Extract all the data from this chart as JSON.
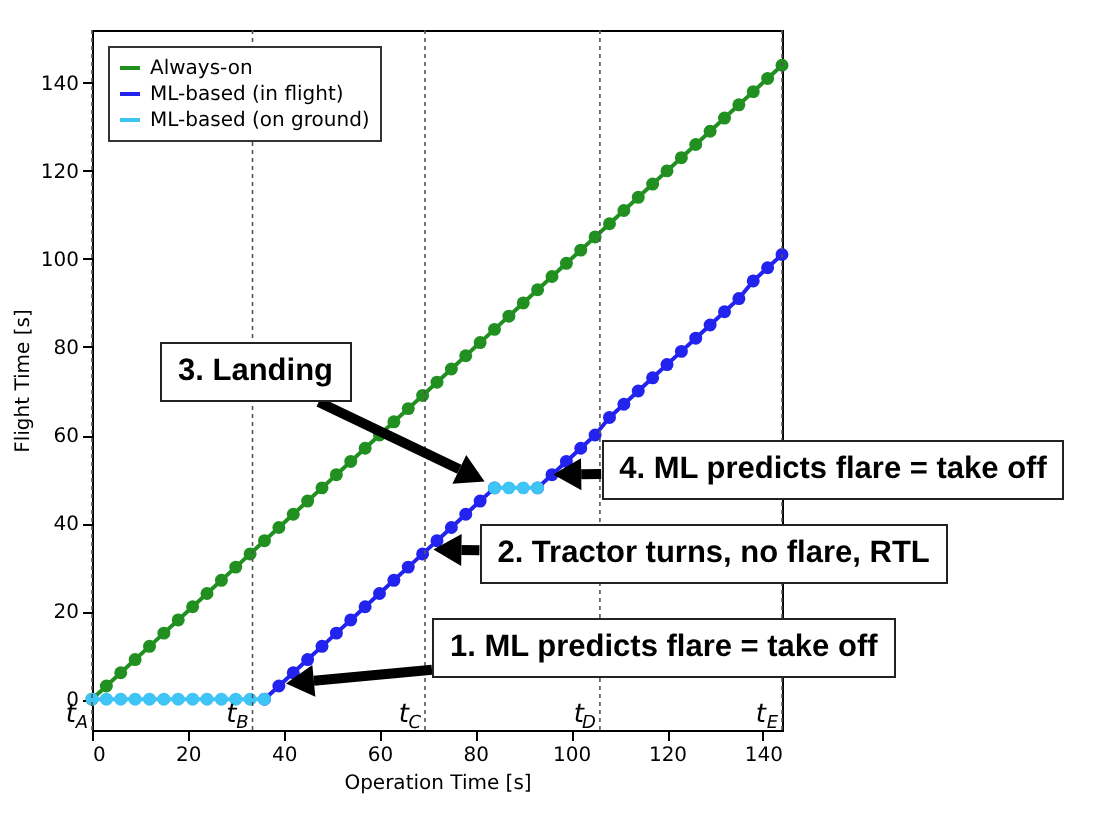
{
  "chart_data": {
    "type": "line",
    "xlabel": "Operation Time [s]",
    "ylabel": "Flight Time [s]",
    "xlim": [
      0,
      144
    ],
    "ylim": [
      -7,
      152
    ],
    "xticks": [
      0,
      20,
      40,
      60,
      80,
      100,
      120,
      140
    ],
    "yticks": [
      0,
      20,
      40,
      60,
      80,
      100,
      120,
      140
    ],
    "grid": false,
    "legend": "top left",
    "marker": "circle",
    "line_style": "solid",
    "series": [
      {
        "name": "Always-on",
        "color": "#219021",
        "x": [
          0,
          3,
          6,
          9,
          12,
          15,
          18,
          21,
          24,
          27,
          30,
          33,
          36,
          39,
          42,
          45,
          48,
          51,
          54,
          57,
          60,
          63,
          66,
          69,
          72,
          75,
          78,
          81,
          84,
          87,
          90,
          93,
          96,
          99,
          102,
          105,
          108,
          111,
          114,
          117,
          120,
          123,
          126,
          129,
          132,
          135,
          138,
          141,
          144
        ],
        "values": [
          0,
          3,
          6,
          9,
          12,
          15,
          18,
          21,
          24,
          27,
          30,
          33,
          36,
          39,
          42,
          45,
          48,
          51,
          54,
          57,
          60,
          63,
          66,
          69,
          72,
          75,
          78,
          81,
          84,
          87,
          90,
          93,
          96,
          99,
          102,
          105,
          108,
          111,
          114,
          117,
          120,
          123,
          126,
          129,
          132,
          135,
          138,
          141,
          144
        ]
      },
      {
        "name": "ML-based (in flight)",
        "color": "#2323f0",
        "x": [
          36,
          39,
          42,
          45,
          48,
          51,
          54,
          57,
          60,
          63,
          66,
          69,
          72,
          75,
          78,
          81,
          84
        ],
        "values": [
          0,
          3,
          6,
          9,
          12,
          15,
          18,
          21,
          24,
          27,
          30,
          33,
          36,
          39,
          42,
          45,
          48
        ]
      },
      {
        "color": "#2323f0",
        "x": [
          93,
          96,
          99,
          102,
          105,
          108,
          111,
          114,
          117,
          120,
          123,
          126,
          129,
          132,
          135,
          138,
          141,
          144
        ],
        "values": [
          48,
          51,
          54,
          57,
          60,
          64,
          67,
          70,
          73,
          76,
          79,
          82,
          85,
          88,
          91,
          95,
          98,
          101
        ]
      },
      {
        "name": "ML-based (on ground)",
        "color": "#3ec4f5",
        "x": [
          0,
          3,
          6,
          9,
          12,
          15,
          18,
          21,
          24,
          27,
          30,
          33,
          36
        ],
        "values": [
          0,
          0,
          0,
          0,
          0,
          0,
          0,
          0,
          0,
          0,
          0,
          0,
          0
        ]
      },
      {
        "color": "#3ec4f5",
        "x": [
          84,
          87,
          90,
          93
        ],
        "values": [
          48,
          48,
          48,
          48
        ]
      }
    ],
    "ref_lines": [
      {
        "axis": "x",
        "value": 0,
        "label": "t$_{A}$"
      },
      {
        "axis": "x",
        "value": 33.5,
        "label": "t$_{B}$"
      },
      {
        "axis": "x",
        "value": 69.5,
        "label": "t$_{C}$"
      },
      {
        "axis": "x",
        "value": 106,
        "label": "t$_{D}$"
      },
      {
        "axis": "x",
        "value": 144,
        "label": "t$_{E}$"
      }
    ],
    "annotations": [
      "1. ML predicts flare = take off",
      {
        "text": "2. Tractor turns, no flare, RTL",
        "x": 70,
        "y": 34
      },
      "3. Landing",
      {
        "text": "4. ML predicts flare = take off",
        "x": 95,
        "y": 51
      }
    ]
  }
}
